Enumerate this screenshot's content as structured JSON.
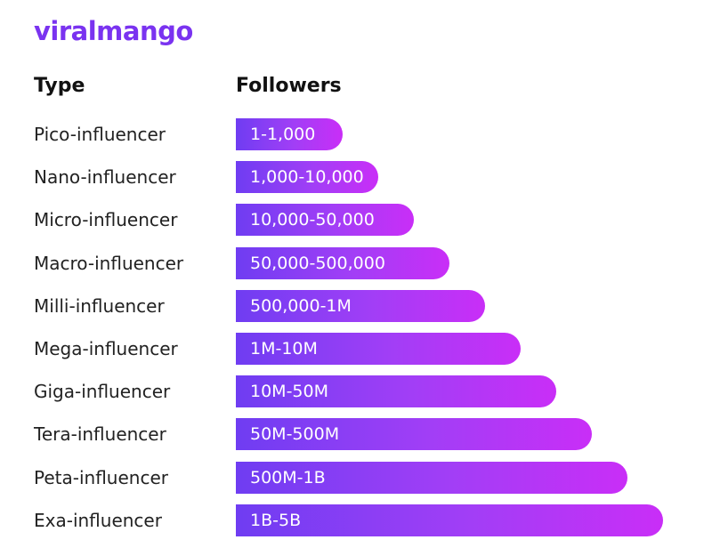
{
  "brand": "viralmango",
  "header": {
    "type": "Type",
    "followers": "Followers"
  },
  "rows": [
    [
      "Pico-influencer",
      "1-1,000"
    ],
    [
      "Nano-influencer",
      "1,000-10,000"
    ],
    [
      "Micro-influencer",
      "10,000-50,000"
    ],
    [
      "Macro-influencer",
      "50,000-500,000"
    ],
    [
      "Milli-influencer",
      "500,000-1M"
    ],
    [
      "Mega-influencer",
      "1M-10M"
    ],
    [
      "Giga-influencer",
      "10M-50M"
    ],
    [
      "Tera-influencer",
      "50M-500M"
    ],
    [
      "Peta-influencer",
      "500M-1B"
    ],
    [
      "Exa-influencer",
      "1B-5B"
    ]
  ]
}
